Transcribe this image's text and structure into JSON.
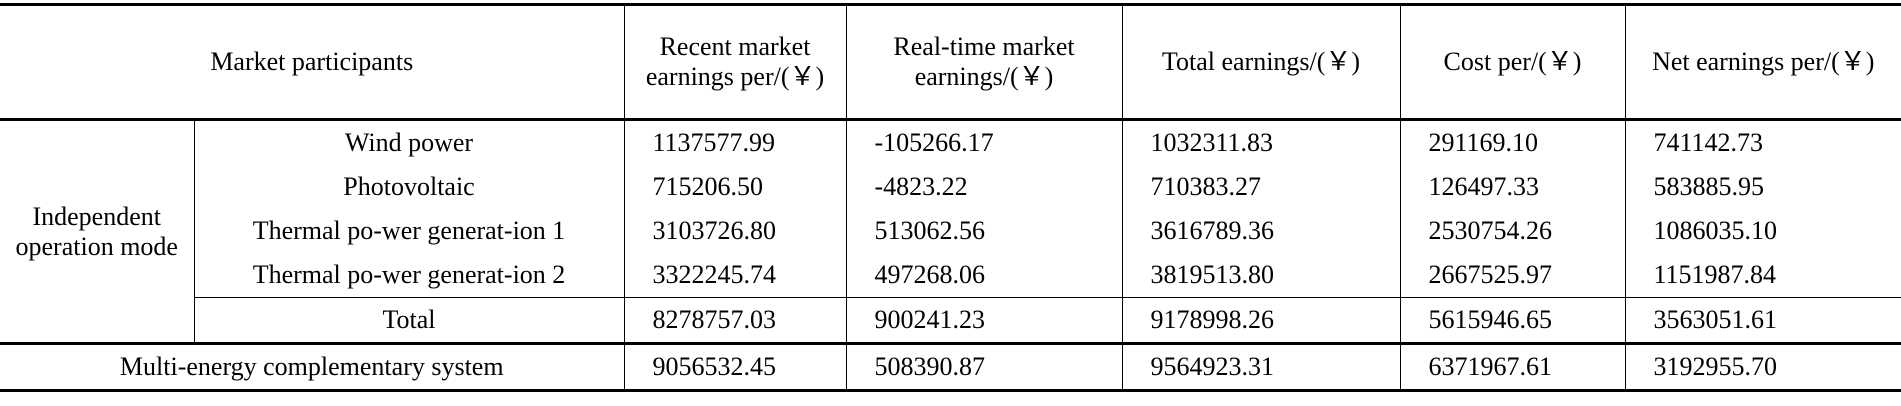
{
  "table": {
    "header": [
      "Market participants",
      "Recent market earnings per/(￥)",
      "Real-time market earnings/(￥)",
      "Total earnings/(￥)",
      "Cost per/(￥)",
      "Net earnings per/(￥)"
    ],
    "group": "Independent operation mode",
    "rows": [
      {
        "label": "Wind power",
        "values": [
          "1137577.99",
          "-105266.17",
          "1032311.83",
          "291169.10",
          "741142.73"
        ]
      },
      {
        "label": "Photovoltaic",
        "values": [
          "715206.50",
          "-4823.22",
          "710383.27",
          "126497.33",
          "583885.95"
        ]
      },
      {
        "label": "Thermal po-wer generat-ion 1",
        "values": [
          "3103726.80",
          "513062.56",
          "3616789.36",
          "2530754.26",
          "1086035.10"
        ]
      },
      {
        "label": "Thermal po-wer generat-ion 2",
        "values": [
          "3322245.74",
          "497268.06",
          "3819513.80",
          "2667525.97",
          "1151987.84"
        ]
      },
      {
        "label": "Total",
        "values": [
          "8278757.03",
          "900241.23",
          "9178998.26",
          "5615946.65",
          "3563051.61"
        ]
      }
    ],
    "system": {
      "label": "Multi-energy complementary system",
      "values": [
        "9056532.45",
        "508390.87",
        "9564923.31",
        "6371967.61",
        "3192955.70"
      ]
    }
  }
}
